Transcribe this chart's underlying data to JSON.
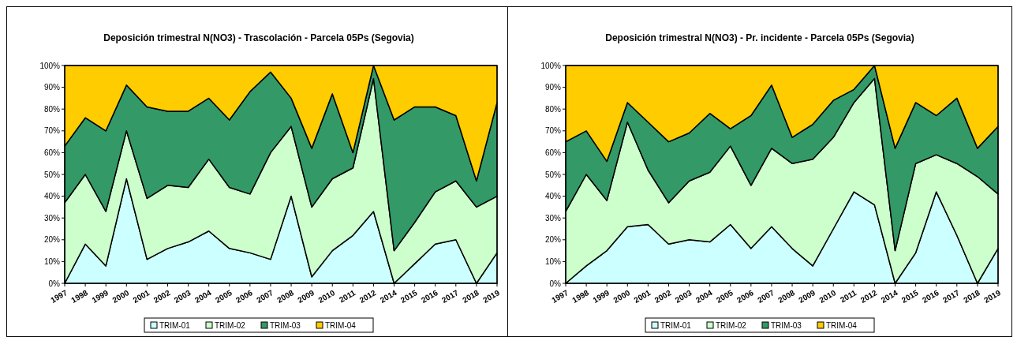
{
  "chart_data": [
    {
      "type": "area",
      "stacked": true,
      "title": "Deposición trimestral N(NO3) - Trascolación - Parcela 05Ps (Segovia)",
      "categories": [
        "1997",
        "1998",
        "1999",
        "2000",
        "2001",
        "2002",
        "2003",
        "2004",
        "2005",
        "2006",
        "2007",
        "2008",
        "2009",
        "2010",
        "2011",
        "2012",
        "2014",
        "2015",
        "2016",
        "2017",
        "2018",
        "2019"
      ],
      "ylim": [
        0,
        100
      ],
      "yticks": [
        {
          "value": 0,
          "label": "0%"
        },
        {
          "value": 10,
          "label": "10%"
        },
        {
          "value": 20,
          "label": "20%"
        },
        {
          "value": 30,
          "label": "30%"
        },
        {
          "value": 40,
          "label": "40%"
        },
        {
          "value": 50,
          "label": "50%"
        },
        {
          "value": 60,
          "label": "60%"
        },
        {
          "value": 70,
          "label": "70%"
        },
        {
          "value": 80,
          "label": "80%"
        },
        {
          "value": 90,
          "label": "90%"
        },
        {
          "value": 100,
          "label": "100%"
        }
      ],
      "legend": "bottom",
      "series": [
        {
          "name": "TRIM-01",
          "color": "#ccffff",
          "values": [
            0,
            18,
            8,
            48,
            11,
            16,
            19,
            24,
            16,
            14,
            11,
            40,
            3,
            15,
            22,
            33,
            0,
            9,
            18,
            20,
            0,
            14
          ]
        },
        {
          "name": "TRIM-02",
          "color": "#ccffcc",
          "values": [
            37,
            32,
            25,
            22,
            28,
            29,
            25,
            33,
            28,
            27,
            49,
            32,
            32,
            33,
            31,
            61,
            15,
            19,
            24,
            27,
            35,
            26
          ]
        },
        {
          "name": "TRIM-03",
          "color": "#339966",
          "values": [
            26,
            26,
            37,
            21,
            42,
            34,
            35,
            28,
            31,
            47,
            37,
            13,
            27,
            39,
            7,
            6,
            60,
            53,
            39,
            30,
            12,
            43
          ]
        },
        {
          "name": "TRIM-04",
          "color": "#ffcc00",
          "values": [
            37,
            24,
            30,
            9,
            19,
            21,
            21,
            15,
            25,
            12,
            3,
            15,
            38,
            13,
            40,
            0,
            25,
            19,
            19,
            23,
            53,
            17
          ]
        }
      ]
    },
    {
      "type": "area",
      "stacked": true,
      "title": "Deposición trimestral N(NO3) - Pr. incidente - Parcela 05Ps (Segovia)",
      "categories": [
        "1997",
        "1998",
        "1999",
        "2000",
        "2001",
        "2002",
        "2003",
        "2004",
        "2005",
        "2006",
        "2007",
        "2008",
        "2009",
        "2010",
        "2011",
        "2012",
        "2014",
        "2015",
        "2016",
        "2017",
        "2018",
        "2019"
      ],
      "ylim": [
        0,
        100
      ],
      "yticks": [
        {
          "value": 0,
          "label": "0%"
        },
        {
          "value": 10,
          "label": "10%"
        },
        {
          "value": 20,
          "label": "20%"
        },
        {
          "value": 30,
          "label": "30%"
        },
        {
          "value": 40,
          "label": "40%"
        },
        {
          "value": 50,
          "label": "50%"
        },
        {
          "value": 60,
          "label": "60%"
        },
        {
          "value": 70,
          "label": "70%"
        },
        {
          "value": 80,
          "label": "80%"
        },
        {
          "value": 90,
          "label": "90%"
        },
        {
          "value": 100,
          "label": "100%"
        }
      ],
      "legend": "bottom",
      "series": [
        {
          "name": "TRIM-01",
          "color": "#ccffff",
          "values": [
            0,
            8,
            15,
            26,
            27,
            18,
            20,
            19,
            27,
            16,
            26,
            16,
            8,
            25,
            42,
            36,
            0,
            14,
            42,
            22,
            0,
            16
          ]
        },
        {
          "name": "TRIM-02",
          "color": "#ccffcc",
          "values": [
            33,
            42,
            23,
            48,
            25,
            19,
            27,
            32,
            36,
            29,
            36,
            39,
            49,
            42,
            41,
            58,
            15,
            41,
            17,
            33,
            49,
            25
          ]
        },
        {
          "name": "TRIM-03",
          "color": "#339966",
          "values": [
            32,
            20,
            18,
            9,
            22,
            28,
            22,
            27,
            8,
            32,
            29,
            12,
            16,
            17,
            6,
            6,
            47,
            28,
            18,
            30,
            13,
            31
          ]
        },
        {
          "name": "TRIM-04",
          "color": "#ffcc00",
          "values": [
            35,
            30,
            44,
            17,
            26,
            35,
            31,
            22,
            29,
            23,
            9,
            33,
            27,
            16,
            11,
            0,
            38,
            17,
            23,
            15,
            38,
            28
          ]
        }
      ]
    }
  ]
}
